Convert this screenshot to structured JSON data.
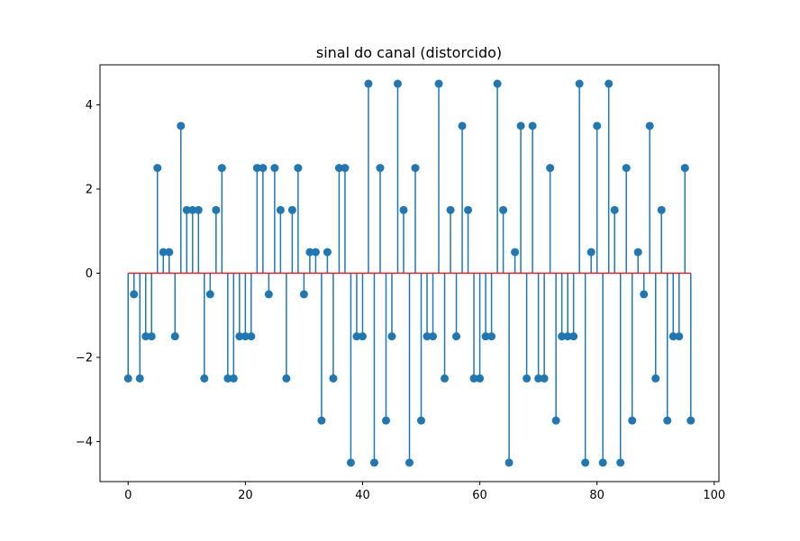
{
  "chart_data": {
    "type": "stem",
    "title": "sinal do canal (distorcido)",
    "xlabel": "",
    "ylabel": "",
    "xlim": [
      -4.8,
      100.8
    ],
    "ylim": [
      -4.95,
      4.95
    ],
    "x_ticks": [
      0,
      20,
      40,
      60,
      80,
      100
    ],
    "y_ticks": [
      -4,
      -2,
      0,
      2,
      4
    ],
    "x_tick_labels": [
      "0",
      "20",
      "40",
      "60",
      "80",
      "100"
    ],
    "y_tick_labels": [
      "−4",
      "−2",
      "0",
      "2",
      "4"
    ],
    "grid": false,
    "baseline": 0,
    "colors": {
      "stem": "#1f77b4",
      "baseline": "#d62728",
      "axes": "#000000"
    },
    "x": [
      0,
      1,
      2,
      3,
      4,
      5,
      6,
      7,
      8,
      9,
      10,
      11,
      12,
      13,
      14,
      15,
      16,
      17,
      18,
      19,
      20,
      21,
      22,
      23,
      24,
      25,
      26,
      27,
      28,
      29,
      30,
      31,
      32,
      33,
      34,
      35,
      36,
      37,
      38,
      39,
      40,
      41,
      42,
      43,
      44,
      45,
      46,
      47,
      48,
      49,
      50,
      51,
      52,
      53,
      54,
      55,
      56,
      57,
      58,
      59,
      60,
      61,
      62,
      63,
      64,
      65,
      66,
      67,
      68,
      69,
      70,
      71,
      72,
      73,
      74,
      75,
      76,
      77,
      78,
      79,
      80,
      81,
      82,
      83,
      84,
      85,
      86,
      87,
      88,
      89,
      90,
      91,
      92,
      93,
      94,
      95,
      96
    ],
    "values": [
      -2.5,
      -0.5,
      -2.5,
      -1.5,
      -1.5,
      2.5,
      0.5,
      0.5,
      -1.5,
      3.5,
      1.5,
      1.5,
      1.5,
      -2.5,
      -0.5,
      1.5,
      2.5,
      -2.5,
      -2.5,
      -1.5,
      -1.5,
      -1.5,
      2.5,
      2.5,
      -0.5,
      2.5,
      1.5,
      -2.5,
      1.5,
      2.5,
      -0.5,
      0.5,
      0.5,
      -3.5,
      0.5,
      -2.5,
      2.5,
      2.5,
      -4.5,
      -1.5,
      -1.5,
      4.5,
      -4.5,
      2.5,
      -3.5,
      -1.5,
      4.5,
      1.5,
      -4.5,
      2.5,
      -3.5,
      -1.5,
      -1.5,
      4.5,
      -2.5,
      1.5,
      -1.5,
      3.5,
      1.5,
      -2.5,
      -2.5,
      -1.5,
      -1.5,
      4.5,
      1.5,
      -4.5,
      0.5,
      3.5,
      -2.5,
      3.5,
      -2.5,
      -2.5,
      2.5,
      -3.5,
      -1.5,
      -1.5,
      -1.5,
      4.5,
      -4.5,
      0.5,
      3.5,
      -4.5,
      4.5,
      1.5,
      -4.5,
      2.5,
      -3.5,
      0.5,
      -0.5,
      3.5,
      -2.5,
      1.5,
      -3.5,
      -1.5,
      -1.5,
      2.5,
      -3.5
    ]
  }
}
